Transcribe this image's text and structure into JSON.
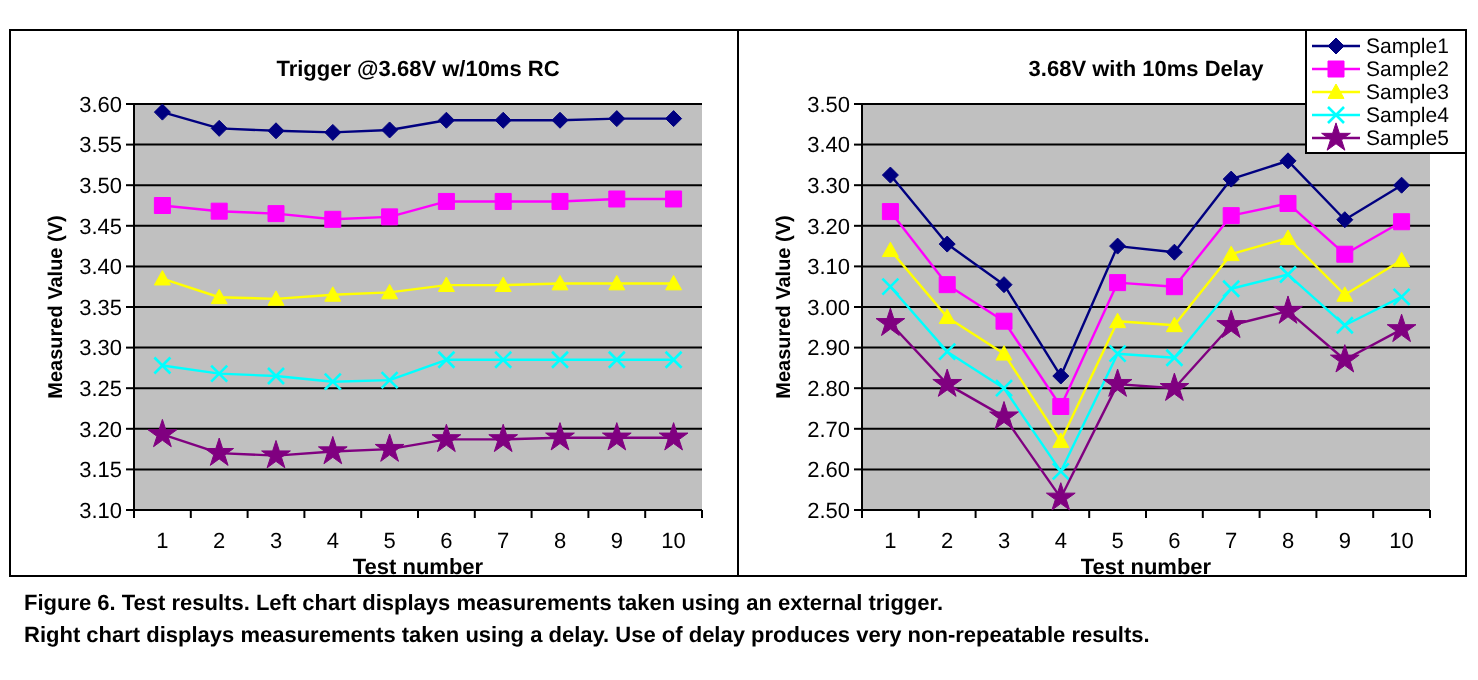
{
  "chart_data": [
    {
      "type": "line",
      "title": "Trigger @3.68V w/10ms RC",
      "xlabel": "Test number",
      "ylabel": "Measured Value (V)",
      "categories": [
        "1",
        "2",
        "3",
        "4",
        "5",
        "6",
        "7",
        "8",
        "9",
        "10"
      ],
      "ylim": [
        3.1,
        3.6
      ],
      "yticks": [
        {
          "value": 3.1,
          "label": "3.10"
        },
        {
          "value": 3.15,
          "label": "3.15"
        },
        {
          "value": 3.2,
          "label": "3.20"
        },
        {
          "value": 3.25,
          "label": "3.25"
        },
        {
          "value": 3.3,
          "label": "3.30"
        },
        {
          "value": 3.35,
          "label": "3.35"
        },
        {
          "value": 3.4,
          "label": "3.40"
        },
        {
          "value": 3.45,
          "label": "3.45"
        },
        {
          "value": 3.5,
          "label": "3.50"
        },
        {
          "value": 3.55,
          "label": "3.55"
        },
        {
          "value": 3.6,
          "label": "3.60"
        }
      ],
      "grid": "y",
      "legend": false,
      "series": [
        {
          "color": "#000080",
          "marker": "diamond",
          "values": [
            3.59,
            3.57,
            3.567,
            3.565,
            3.568,
            3.58,
            3.58,
            3.58,
            3.582,
            3.582
          ]
        },
        {
          "color": "#ff00ff",
          "marker": "square",
          "values": [
            3.475,
            3.468,
            3.465,
            3.458,
            3.461,
            3.48,
            3.48,
            3.48,
            3.483,
            3.483
          ]
        },
        {
          "color": "#ffff00",
          "marker": "triangle",
          "values": [
            3.385,
            3.362,
            3.36,
            3.365,
            3.368,
            3.377,
            3.377,
            3.379,
            3.379,
            3.379
          ]
        },
        {
          "color": "#00ffff",
          "marker": "cross",
          "values": [
            3.278,
            3.268,
            3.265,
            3.258,
            3.26,
            3.285,
            3.285,
            3.285,
            3.285,
            3.285
          ]
        },
        {
          "color": "#800080",
          "marker": "star",
          "values": [
            3.193,
            3.17,
            3.167,
            3.172,
            3.175,
            3.187,
            3.187,
            3.189,
            3.189,
            3.189
          ]
        }
      ],
      "annotations": [
        "Figure 6. Test results. Left chart displays measurements taken using an external trigger.",
        "Right chart displays measurements taken using a delay. Use of delay produces very non-repeatable results."
      ]
    },
    {
      "type": "line",
      "title": "3.68V with 10ms Delay",
      "xlabel": "Test number",
      "ylabel": "Measured Value (V)",
      "categories": [
        "1",
        "2",
        "3",
        "4",
        "5",
        "6",
        "7",
        "8",
        "9",
        "10"
      ],
      "ylim": [
        2.5,
        3.5
      ],
      "yticks": [
        {
          "value": 2.5,
          "label": "2.50"
        },
        {
          "value": 2.6,
          "label": "2.60"
        },
        {
          "value": 2.7,
          "label": "2.70"
        },
        {
          "value": 2.8,
          "label": "2.80"
        },
        {
          "value": 2.9,
          "label": "2.90"
        },
        {
          "value": 3.0,
          "label": "3.00"
        },
        {
          "value": 3.1,
          "label": "3.10"
        },
        {
          "value": 3.2,
          "label": "3.20"
        },
        {
          "value": 3.3,
          "label": "3.30"
        },
        {
          "value": 3.4,
          "label": "3.40"
        },
        {
          "value": 3.5,
          "label": "3.50"
        }
      ],
      "grid": "y",
      "legend": "top right",
      "series": [
        {
          "name": "Sample1",
          "color": "#000080",
          "marker": "diamond",
          "values": [
            3.325,
            3.155,
            3.055,
            2.83,
            3.15,
            3.135,
            3.315,
            3.36,
            3.215,
            3.3
          ]
        },
        {
          "name": "Sample2",
          "color": "#ff00ff",
          "marker": "square",
          "values": [
            3.235,
            3.055,
            2.965,
            2.755,
            3.06,
            3.05,
            3.225,
            3.255,
            3.13,
            3.21
          ]
        },
        {
          "name": "Sample3",
          "color": "#ffff00",
          "marker": "triangle",
          "values": [
            3.14,
            2.975,
            2.885,
            2.67,
            2.965,
            2.955,
            3.13,
            3.17,
            3.03,
            3.115
          ]
        },
        {
          "name": "Sample4",
          "color": "#00ffff",
          "marker": "cross",
          "values": [
            3.05,
            2.89,
            2.8,
            2.595,
            2.885,
            2.875,
            3.045,
            3.08,
            2.955,
            3.025
          ]
        },
        {
          "name": "Sample5",
          "color": "#800080",
          "marker": "star",
          "values": [
            2.96,
            2.81,
            2.73,
            2.53,
            2.81,
            2.8,
            2.955,
            2.99,
            2.87,
            2.945
          ]
        }
      ]
    }
  ]
}
